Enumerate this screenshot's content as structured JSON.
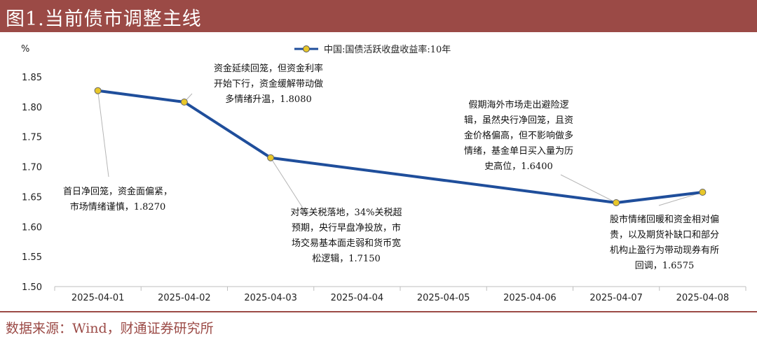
{
  "figure_title": "图1.当前债市调整主线",
  "source": "数据来源：Wind，财通证券研究所",
  "chart_data": {
    "type": "line",
    "ylabel": "%",
    "ylim": [
      1.5,
      1.85
    ],
    "yticks": [
      "1.50",
      "1.55",
      "1.60",
      "1.65",
      "1.70",
      "1.75",
      "1.80",
      "1.85"
    ],
    "categories": [
      "2025-04-01",
      "2025-04-02",
      "2025-04-03",
      "2025-04-04",
      "2025-04-05",
      "2025-04-06",
      "2025-04-07",
      "2025-04-08"
    ],
    "legend_position": "top-center",
    "grid": false,
    "series": [
      {
        "name": "中国:国债活跃收盘收益率:10年",
        "color": "#1f4e9b",
        "marker_color": "#e8c72a",
        "points": [
          {
            "x": "2025-04-01",
            "y": 1.827
          },
          {
            "x": "2025-04-02",
            "y": 1.808
          },
          {
            "x": "2025-04-03",
            "y": 1.715
          },
          {
            "x": "2025-04-07",
            "y": 1.64
          },
          {
            "x": "2025-04-08",
            "y": 1.6575
          }
        ]
      }
    ],
    "annotations": [
      {
        "point": 0,
        "lines": [
          "首日净回笼，资金面偏紧，",
          "市场情绪谨慎，1.8270"
        ]
      },
      {
        "point": 1,
        "lines": [
          "资金延续回笼，但资金利率",
          "开始下行，资金缓解带动做",
          "多情绪升温，1.8080"
        ]
      },
      {
        "point": 2,
        "lines": [
          "对等关税落地，34%关税超",
          "预期，央行早盘净投放，市",
          "场交易基本面走弱和货币宽",
          "松逻辑，1.7150"
        ]
      },
      {
        "point": 3,
        "lines": [
          "假期海外市场走出避险逻",
          "辑，虽然央行净回笼，且资",
          "金价格偏高，但不影响做多",
          "情绪，基金单日买入量为历",
          "史高位，1.6400"
        ]
      },
      {
        "point": 4,
        "lines": [
          "股市情绪回暖和资金相对偏",
          "贵，以及期货补缺口和部分",
          "机构止盈行为带动现券有所",
          "回调，1.6575"
        ]
      }
    ]
  }
}
